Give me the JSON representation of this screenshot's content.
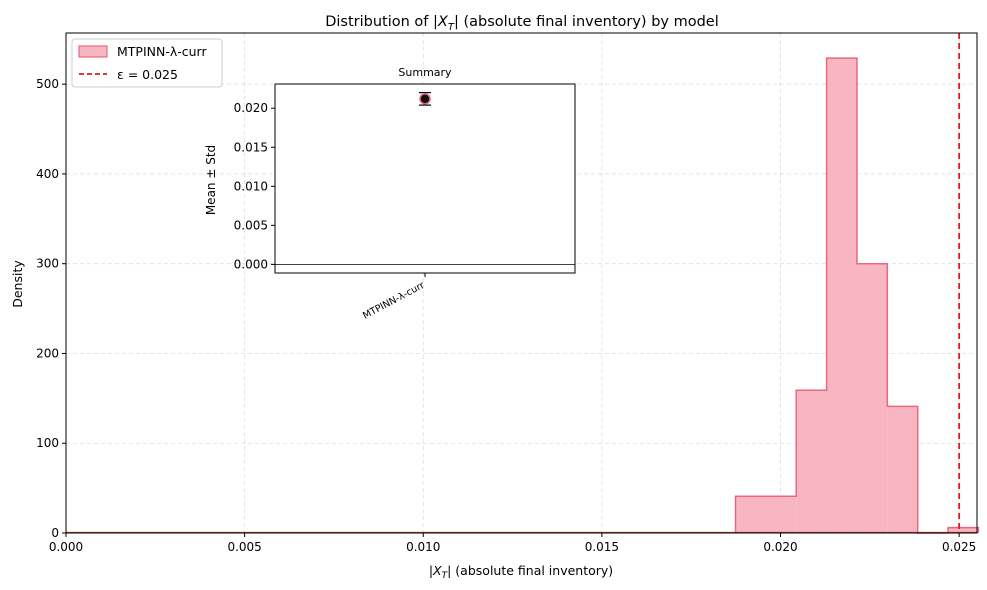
{
  "chart_data": [
    {
      "type": "histogram",
      "title": "Distribution of |X_T| (absolute final inventory) by model",
      "title_parts": [
        "Distribution of |",
        "X",
        "T",
        "| (absolute final inventory) by model"
      ],
      "xlabel": "|X_T|  (absolute final inventory)",
      "xlabel_parts": [
        "|",
        "X",
        "T",
        "|  (absolute final inventory)"
      ],
      "ylabel": "Density",
      "xlim": [
        0,
        0.0255
      ],
      "ylim": [
        0,
        557
      ],
      "xticks": [
        {
          "value": 0.0,
          "label": "0.000"
        },
        {
          "value": 0.005,
          "label": "0.005"
        },
        {
          "value": 0.01,
          "label": "0.010"
        },
        {
          "value": 0.015,
          "label": "0.015"
        },
        {
          "value": 0.02,
          "label": "0.020"
        },
        {
          "value": 0.025,
          "label": "0.025"
        }
      ],
      "yticks": [
        {
          "value": 0,
          "label": "0"
        },
        {
          "value": 100,
          "label": "100"
        },
        {
          "value": 200,
          "label": "200"
        },
        {
          "value": 300,
          "label": "300"
        },
        {
          "value": 400,
          "label": "400"
        },
        {
          "value": 500,
          "label": "500"
        }
      ],
      "grid": true,
      "legend_position": "top-left",
      "series": [
        {
          "name": "MTPINN-λ-curr",
          "color": "#f7b6c2",
          "edge_color": "#e8687f",
          "bins": [
            {
              "x0": 0.01874,
              "x1": 0.02044,
              "value": 41
            },
            {
              "x0": 0.02044,
              "x1": 0.02129,
              "value": 159
            },
            {
              "x0": 0.02129,
              "x1": 0.02214,
              "value": 529
            },
            {
              "x0": 0.02214,
              "x1": 0.02299,
              "value": 300
            },
            {
              "x0": 0.02299,
              "x1": 0.02384,
              "value": 141
            },
            {
              "x0": 0.02384,
              "x1": 0.02469,
              "value": 0
            },
            {
              "x0": 0.02469,
              "x1": 0.02554,
              "value": 6
            }
          ]
        }
      ],
      "reference_line": {
        "name": "ε = 0.025",
        "x": 0.025,
        "color": "#e31a1c",
        "style": "dashed"
      }
    },
    {
      "type": "errorbar",
      "title": "Summary",
      "ylabel": "Mean ± Std",
      "ylim": [
        -0.0011,
        0.0231
      ],
      "yticks": [
        {
          "value": 0.0,
          "label": "0.000"
        },
        {
          "value": 0.005,
          "label": "0.005"
        },
        {
          "value": 0.01,
          "label": "0.010"
        },
        {
          "value": 0.015,
          "label": "0.015"
        },
        {
          "value": 0.02,
          "label": "0.020"
        }
      ],
      "categories": [
        "MTPINN-λ-curr"
      ],
      "points": [
        {
          "category": "MTPINN-λ-curr",
          "mean": 0.0212,
          "std": 0.0008,
          "color": "#e8687f"
        }
      ]
    }
  ]
}
